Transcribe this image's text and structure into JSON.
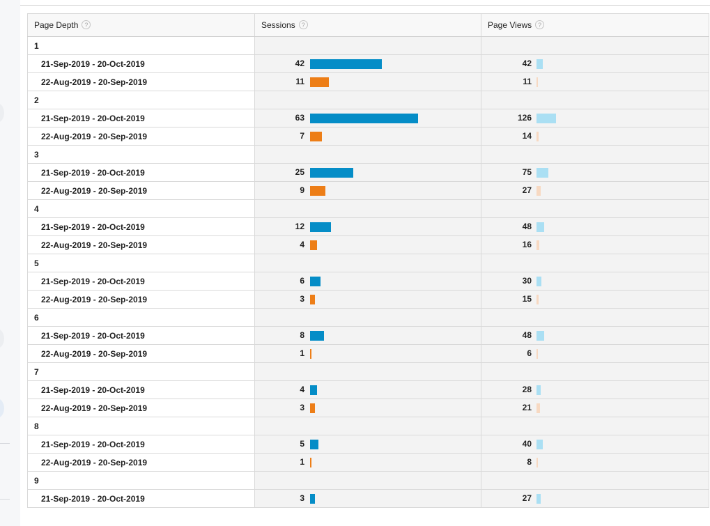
{
  "columns": [
    {
      "label": "Page Depth",
      "help": "?"
    },
    {
      "label": "Sessions",
      "help": "?"
    },
    {
      "label": "Page Views",
      "help": "?"
    }
  ],
  "ranges": {
    "current": "21-Sep-2019 - 20-Oct-2019",
    "previous": "22-Aug-2019 - 20-Sep-2019"
  },
  "colors": {
    "sessions_current": "#058dc7",
    "sessions_previous": "#ed7e17",
    "pageviews_current": "#aadff3",
    "pageviews_previous": "#f7d9c2"
  },
  "rows": [
    {
      "depth": "1",
      "current": {
        "sessions": 42,
        "pageviews": 42
      },
      "previous": {
        "sessions": 11,
        "pageviews": 11
      }
    },
    {
      "depth": "2",
      "current": {
        "sessions": 63,
        "pageviews": 126
      },
      "previous": {
        "sessions": 7,
        "pageviews": 14
      }
    },
    {
      "depth": "3",
      "current": {
        "sessions": 25,
        "pageviews": 75
      },
      "previous": {
        "sessions": 9,
        "pageviews": 27
      }
    },
    {
      "depth": "4",
      "current": {
        "sessions": 12,
        "pageviews": 48
      },
      "previous": {
        "sessions": 4,
        "pageviews": 16
      }
    },
    {
      "depth": "5",
      "current": {
        "sessions": 6,
        "pageviews": 30
      },
      "previous": {
        "sessions": 3,
        "pageviews": 15
      }
    },
    {
      "depth": "6",
      "current": {
        "sessions": 8,
        "pageviews": 48
      },
      "previous": {
        "sessions": 1,
        "pageviews": 6
      }
    },
    {
      "depth": "7",
      "current": {
        "sessions": 4,
        "pageviews": 28
      },
      "previous": {
        "sessions": 3,
        "pageviews": 21
      }
    },
    {
      "depth": "8",
      "current": {
        "sessions": 5,
        "pageviews": 40
      },
      "previous": {
        "sessions": 1,
        "pageviews": 8
      }
    },
    {
      "depth": "9",
      "current": {
        "sessions": 3,
        "pageviews": 27
      },
      "previous": null
    }
  ]
}
